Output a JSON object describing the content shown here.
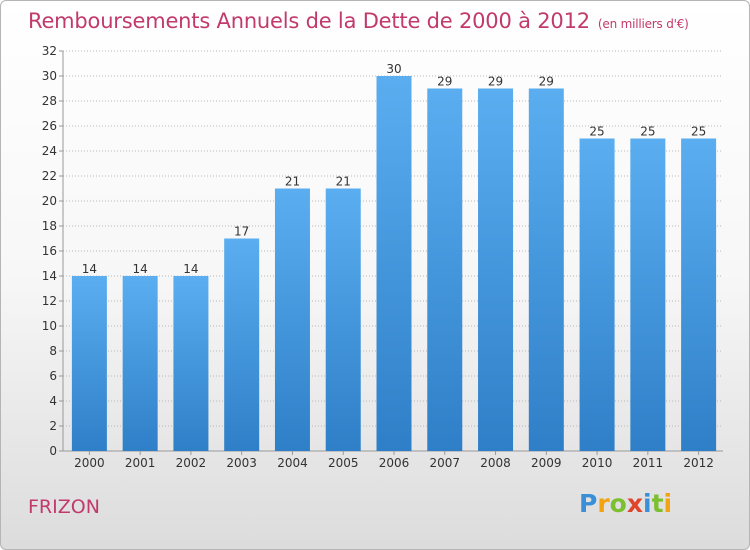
{
  "header": {
    "title": "Remboursements Annuels de la Dette de 2000 à 2012",
    "unit": "(en milliers d'€)"
  },
  "footer": {
    "commune": "FRIZON",
    "logo": {
      "letters": [
        {
          "ch": "P",
          "color": "#3a8fd6"
        },
        {
          "ch": "r",
          "color": "#f2a30f"
        },
        {
          "ch": "o",
          "color": "#7cbf2f"
        },
        {
          "ch": "x",
          "color": "#e0452b"
        },
        {
          "ch": "i",
          "color": "#3a8fd6"
        },
        {
          "ch": "t",
          "color": "#7cbf2f"
        },
        {
          "ch": "i",
          "color": "#f2a30f"
        }
      ]
    }
  },
  "chart_data": {
    "type": "bar",
    "title": "Remboursements Annuels de la Dette de 2000 à 2012",
    "categories": [
      "2000",
      "2001",
      "2002",
      "2003",
      "2004",
      "2005",
      "2006",
      "2007",
      "2008",
      "2009",
      "2010",
      "2011",
      "2012"
    ],
    "values": [
      14,
      14,
      14,
      17,
      21,
      21,
      30,
      29,
      29,
      29,
      25,
      25,
      25
    ],
    "ylim": [
      0,
      32
    ],
    "yticks": [
      0,
      2,
      4,
      6,
      8,
      10,
      12,
      14,
      16,
      18,
      20,
      22,
      24,
      26,
      28,
      30,
      32
    ],
    "grid": "horizontal-dotted",
    "bar_color_top": "#5aaef0",
    "bar_color_bottom": "#2f7fc8"
  }
}
